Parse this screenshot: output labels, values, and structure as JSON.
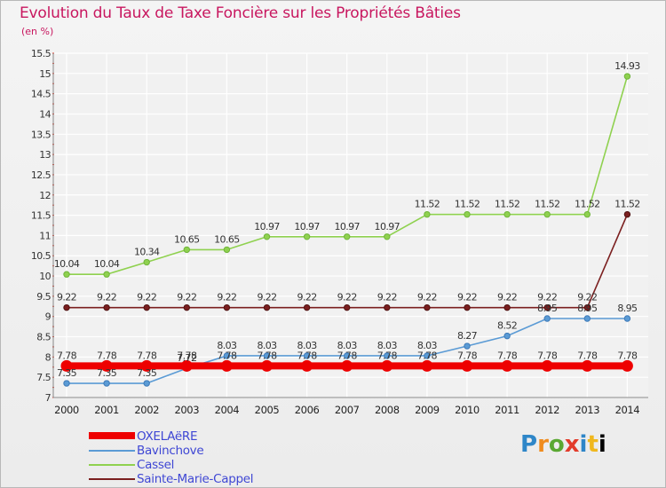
{
  "header": {
    "title": "Evolution du Taux de Taxe Foncière sur les Propriétés Bâties",
    "unit": "(en %)"
  },
  "logo": {
    "text": "Proxiti"
  },
  "legend": {
    "items": [
      {
        "label": "OXELAëRE"
      },
      {
        "label": "Bavinchove"
      },
      {
        "label": "Cassel"
      },
      {
        "label": "Sainte-Marie-Cappel"
      }
    ]
  },
  "chart_data": {
    "type": "line",
    "title": "Evolution du Taux de Taxe Foncière sur les Propriétés Bâties",
    "ylabel": "(en %)",
    "xlabel": "",
    "categories": [
      "2000",
      "2001",
      "2002",
      "2003",
      "2004",
      "2005",
      "2006",
      "2007",
      "2008",
      "2009",
      "2010",
      "2011",
      "2012",
      "2013",
      "2014"
    ],
    "ylim": [
      7,
      15.5
    ],
    "yticks": [
      "7",
      "7.5",
      "8",
      "8.5",
      "9",
      "9.5",
      "10",
      "10.5",
      "11",
      "11.5",
      "12",
      "12.5",
      "13",
      "13.5",
      "14",
      "14.5",
      "15",
      "15.5"
    ],
    "grid": true,
    "legend_position": "bottom-left",
    "series": [
      {
        "name": "OXELAëRE",
        "color": "#ee0000",
        "values": [
          7.78,
          7.78,
          7.78,
          7.78,
          7.78,
          7.78,
          7.78,
          7.78,
          7.78,
          7.78,
          7.78,
          7.78,
          7.78,
          7.78,
          7.78
        ],
        "labels": [
          "7.78",
          "7.78",
          "7.78",
          "7.78",
          "7.78",
          "7.78",
          "7.78",
          "7.78",
          "7.78",
          "7.78",
          "7.78",
          "7.78",
          "7.78",
          "7.78",
          "7.78"
        ]
      },
      {
        "name": "Bavinchove",
        "color": "#5b9bd5",
        "values": [
          7.35,
          7.35,
          7.35,
          7.72,
          8.03,
          8.03,
          8.03,
          8.03,
          8.03,
          8.03,
          8.27,
          8.52,
          8.95,
          8.95,
          8.95
        ],
        "labels": [
          "7.35",
          "7.35",
          "7.35",
          "7.72",
          "8.03",
          "8.03",
          "8.03",
          "8.03",
          "8.03",
          "8.03",
          "8.27",
          "8.52",
          "8.95",
          "8.95",
          "8.95"
        ]
      },
      {
        "name": "Cassel",
        "color": "#8fd14f",
        "values": [
          10.04,
          10.04,
          10.34,
          10.65,
          10.65,
          10.97,
          10.97,
          10.97,
          10.97,
          11.52,
          11.52,
          11.52,
          11.52,
          11.52,
          14.93
        ],
        "labels": [
          "10.04",
          "10.04",
          "10.34",
          "10.65",
          "10.65",
          "10.97",
          "10.97",
          "10.97",
          "10.97",
          "11.52",
          "11.52",
          "11.52",
          "11.52",
          "11.52",
          "14.93"
        ]
      },
      {
        "name": "Sainte-Marie-Cappel",
        "color": "#7b1f1f",
        "values": [
          9.22,
          9.22,
          9.22,
          9.22,
          9.22,
          9.22,
          9.22,
          9.22,
          9.22,
          9.22,
          9.22,
          9.22,
          9.22,
          9.22,
          11.52
        ],
        "labels": [
          "9.22",
          "9.22",
          "9.22",
          "9.22",
          "9.22",
          "9.22",
          "9.22",
          "9.22",
          "9.22",
          "9.22",
          "9.22",
          "9.22",
          "9.22",
          "9.22",
          "11.52"
        ]
      }
    ]
  }
}
